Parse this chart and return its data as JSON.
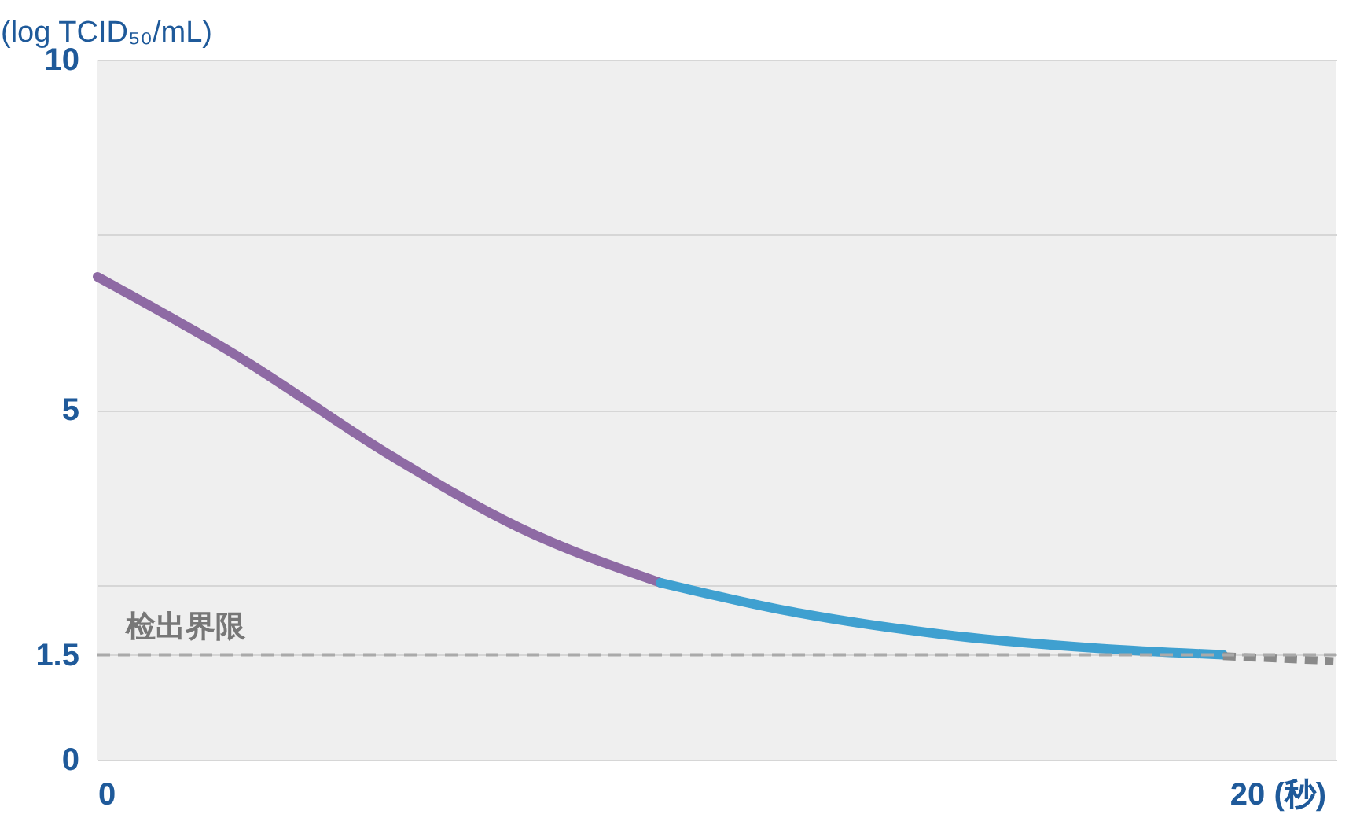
{
  "chart_data": {
    "type": "line",
    "ylabel": "(log TCID₅₀/mL)",
    "xlim": [
      0,
      21
    ],
    "xticks": [
      0,
      {
        "value": 20,
        "label": "20 (秒)"
      }
    ],
    "ylim": [
      0,
      10
    ],
    "yticks": [
      0,
      1.5,
      {
        "value": 2.5,
        "label": null
      },
      5,
      {
        "value": 7.5,
        "label": null
      },
      10
    ],
    "grid": "y",
    "marker": "none",
    "series": [
      {
        "color": "#8e6aa4",
        "x": [
          0,
          2.35,
          5.0,
          7.14,
          9.54
        ],
        "values": [
          6.9,
          5.78,
          4.33,
          3.32,
          2.53
        ]
      },
      {
        "color": "#3fa0d0",
        "x": [
          9.54,
          11.67,
          14.34,
          17.0,
          19.08
        ],
        "values": [
          2.53,
          2.13,
          1.79,
          1.59,
          1.5
        ]
      },
      {
        "color": "#8a8a8a",
        "line_style": "dashed",
        "x": [
          19.08,
          20.95
        ],
        "values": [
          1.48,
          1.41
        ]
      }
    ],
    "ref_lines": [
      {
        "axis": "y",
        "value": 1.5,
        "label": "检出界限",
        "color": "#aaaaaa",
        "line_style": "dashed"
      }
    ]
  }
}
